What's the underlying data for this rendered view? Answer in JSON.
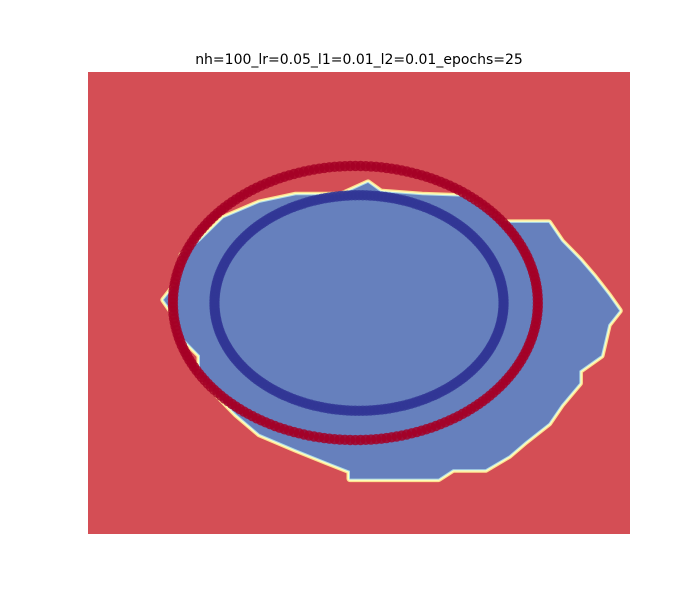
{
  "chart_data": {
    "type": "scatter",
    "title": "nh=100_lr=0.05_l1=0.01_l2=0.01_epochs=25",
    "xlabel": "",
    "ylabel": "",
    "xlim": [
      -1.5,
      1.5
    ],
    "ylim": [
      -1.5,
      1.5
    ],
    "axes_visible": false,
    "grid": false,
    "legend": "none",
    "background_region": {
      "label": "class 0 decision region",
      "color": "#d44e55"
    },
    "decision_region": {
      "label": "class 1 decision region",
      "color": "#6680bd",
      "boundary_colors": [
        "#fee090",
        "#abd9e9"
      ],
      "polygon": [
        [
          0.05,
          0.78
        ],
        [
          0.12,
          0.72
        ],
        [
          0.35,
          0.7
        ],
        [
          0.58,
          0.69
        ],
        [
          0.8,
          0.52
        ],
        [
          1.05,
          0.52
        ],
        [
          1.12,
          0.4
        ],
        [
          1.22,
          0.28
        ],
        [
          1.3,
          0.17
        ],
        [
          1.38,
          0.05
        ],
        [
          1.44,
          -0.05
        ],
        [
          1.38,
          -0.14
        ],
        [
          1.34,
          -0.34
        ],
        [
          1.22,
          -0.44
        ],
        [
          1.22,
          -0.52
        ],
        [
          1.12,
          -0.66
        ],
        [
          1.05,
          -0.78
        ],
        [
          0.92,
          -0.9
        ],
        [
          0.83,
          -0.99
        ],
        [
          0.7,
          -1.08
        ],
        [
          0.52,
          -1.08
        ],
        [
          0.44,
          -1.14
        ],
        [
          0.2,
          -1.14
        ],
        [
          -0.05,
          -1.14
        ],
        [
          -0.05,
          -1.09
        ],
        [
          -0.18,
          -1.03
        ],
        [
          -0.35,
          -0.95
        ],
        [
          -0.55,
          -0.85
        ],
        [
          -0.68,
          -0.72
        ],
        [
          -0.78,
          -0.6
        ],
        [
          -0.88,
          -0.47
        ],
        [
          -0.88,
          -0.34
        ],
        [
          -0.98,
          -0.22
        ],
        [
          -1.02,
          -0.08
        ],
        [
          -1.08,
          0.02
        ],
        [
          -1.02,
          0.11
        ],
        [
          -0.98,
          0.19
        ],
        [
          -0.98,
          0.31
        ],
        [
          -0.88,
          0.4
        ],
        [
          -0.75,
          0.55
        ],
        [
          -0.55,
          0.65
        ],
        [
          -0.35,
          0.7
        ],
        [
          -0.1,
          0.7
        ]
      ]
    },
    "series": [
      {
        "class": 0,
        "color": "#a50026",
        "shape": "ellipse ring",
        "center": [
          -0.02,
          0.0
        ],
        "radius_x": 1.01,
        "radius_y": 0.89,
        "marker_count": 220
      },
      {
        "class": 1,
        "color": "#313695",
        "shape": "ellipse ring",
        "center": [
          0.0,
          0.0
        ],
        "radius_x": 0.8,
        "radius_y": 0.7,
        "marker_count": 240
      }
    ]
  }
}
